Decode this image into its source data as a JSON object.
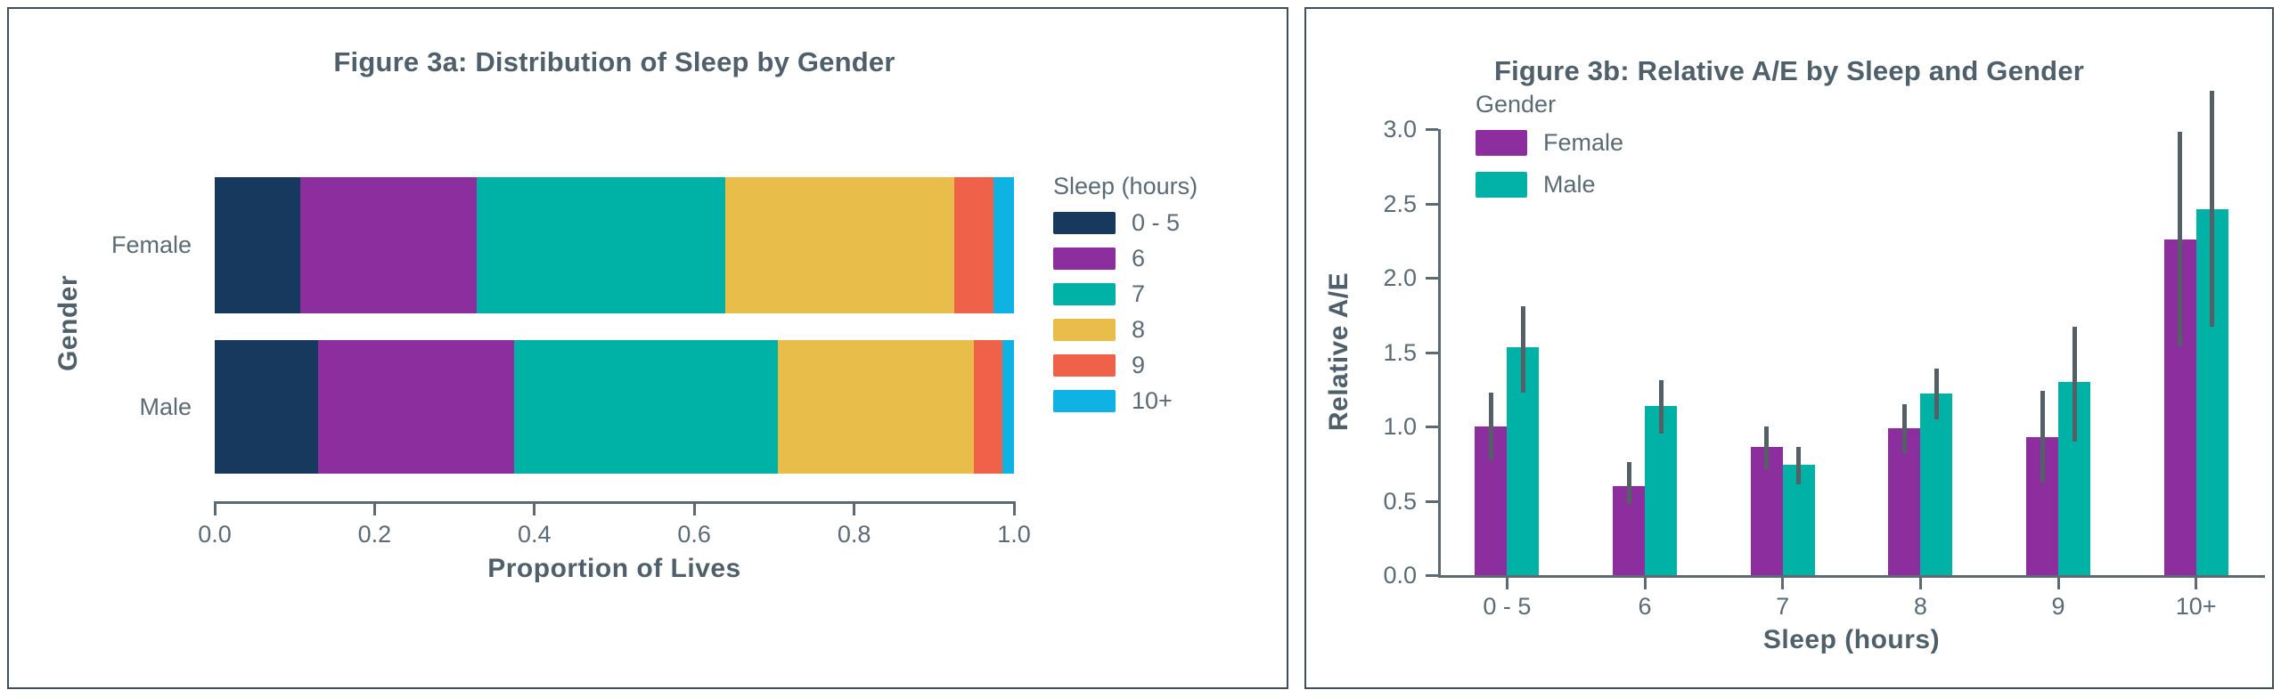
{
  "colors": {
    "sleep_0_5": "#17395d",
    "sleep_6": "#8d2e9e",
    "sleep_7": "#00b2a6",
    "sleep_8": "#e8bd4a",
    "sleep_9": "#f0614a",
    "sleep_10plus": "#0fb3e3",
    "female": "#8d2e9e",
    "male": "#00b2a6",
    "text_slate": "#5b6b75",
    "title_slate": "#4f606b",
    "axis": "#5d6a73",
    "error_bar": "#545f66",
    "panel_border": "#3e4f59",
    "background": "#ffffff"
  },
  "chart_data": [
    {
      "type": "bar",
      "subtype": "horizontal-stacked-proportion",
      "title": "Figure 3a: Distribution of Sleep by Gender",
      "xlabel": "Proportion of Lives",
      "ylabel": "Gender",
      "legend_title": "Sleep (hours)",
      "legend_position": "right",
      "categories": [
        "Female",
        "Male"
      ],
      "stack_labels": [
        "0 - 5",
        "6",
        "7",
        "8",
        "9",
        "10+"
      ],
      "stack_colors": [
        "#17395d",
        "#8d2e9e",
        "#00b2a6",
        "#e8bd4a",
        "#f0614a",
        "#0fb3e3"
      ],
      "series": [
        {
          "name": "Female",
          "values": [
            0.107,
            0.221,
            0.311,
            0.286,
            0.049,
            0.026
          ]
        },
        {
          "name": "Male",
          "values": [
            0.129,
            0.246,
            0.33,
            0.245,
            0.036,
            0.014
          ]
        }
      ],
      "xlim": [
        0,
        1
      ],
      "x_ticks": [
        0,
        0.2,
        0.4,
        0.6,
        0.8,
        1.0
      ],
      "x_tick_labels": [
        "0.0",
        "0.2",
        "0.4",
        "0.6",
        "0.8",
        "1.0"
      ],
      "grid": false
    },
    {
      "type": "bar",
      "subtype": "grouped-vertical-with-error-bars",
      "title": "Figure 3b: Relative A/E by Sleep and Gender",
      "xlabel": "Sleep (hours)",
      "ylabel": "Relative A/E",
      "legend_title": "Gender",
      "legend_position": "top-left-inside",
      "categories": [
        "0 - 5",
        "6",
        "7",
        "8",
        "9",
        "10+"
      ],
      "series": [
        {
          "name": "Female",
          "color": "#8d2e9e",
          "values": [
            1.0,
            0.6,
            0.86,
            0.99,
            0.93,
            2.26
          ],
          "err_low": [
            0.77,
            0.48,
            0.71,
            0.82,
            0.62,
            1.54
          ],
          "err_high": [
            1.23,
            0.76,
            1.0,
            1.15,
            1.24,
            2.98
          ]
        },
        {
          "name": "Male",
          "color": "#00b2a6",
          "values": [
            1.53,
            1.14,
            0.74,
            1.22,
            1.3,
            2.46
          ],
          "err_low": [
            1.23,
            0.95,
            0.61,
            1.05,
            0.9,
            1.67
          ],
          "err_high": [
            1.81,
            1.31,
            0.86,
            1.39,
            1.67,
            3.26
          ]
        }
      ],
      "ylim": [
        0,
        3.0
      ],
      "y_ticks": [
        0,
        0.5,
        1.0,
        1.5,
        2.0,
        2.5,
        3.0
      ],
      "y_tick_labels": [
        "0.0",
        "0.5",
        "1.0",
        "1.5",
        "2.0",
        "2.5",
        "3.0"
      ],
      "grid": false
    }
  ]
}
